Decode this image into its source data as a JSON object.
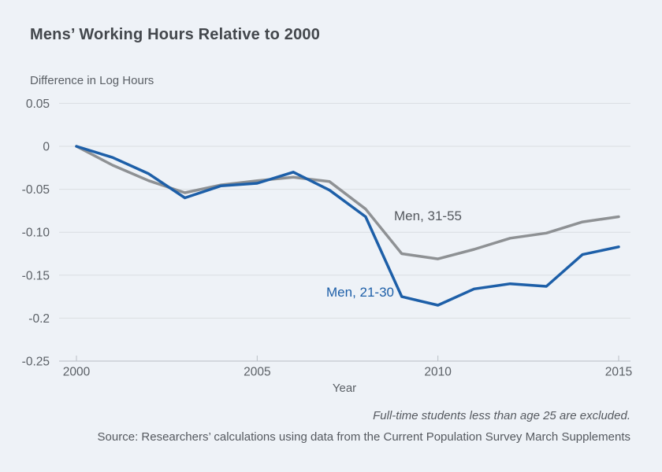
{
  "page": {
    "background_color": "#eef2f7"
  },
  "chart_data": {
    "type": "line",
    "title": "Mens’ Working Hours Relative to 2000",
    "ylabel": "Difference in Log Hours",
    "xlabel": "Year",
    "x": [
      2000,
      2001,
      2002,
      2003,
      2004,
      2005,
      2006,
      2007,
      2008,
      2009,
      2010,
      2011,
      2012,
      2013,
      2014,
      2015
    ],
    "series": [
      {
        "name": "Men, 31-55",
        "color": "#8e9194",
        "values": [
          0,
          -0.022,
          -0.04,
          -0.054,
          -0.045,
          -0.04,
          -0.036,
          -0.041,
          -0.073,
          -0.125,
          -0.131,
          -0.12,
          -0.107,
          -0.101,
          -0.088,
          -0.082
        ]
      },
      {
        "name": "Men, 21-30",
        "color": "#1d5fa8",
        "values": [
          0,
          -0.013,
          -0.032,
          -0.06,
          -0.046,
          -0.043,
          -0.03,
          -0.051,
          -0.082,
          -0.175,
          -0.185,
          -0.166,
          -0.16,
          -0.163,
          -0.126,
          -0.117
        ]
      }
    ],
    "y_ticks": [
      {
        "value": 0.05,
        "label": "0.05"
      },
      {
        "value": 0,
        "label": "0"
      },
      {
        "value": -0.05,
        "label": "-0.05"
      },
      {
        "value": -0.1,
        "label": "-0.10"
      },
      {
        "value": -0.15,
        "label": "-0.15"
      },
      {
        "value": -0.2,
        "label": "-0.2"
      },
      {
        "value": -0.25,
        "label": "-0.25"
      }
    ],
    "x_ticks": [
      {
        "value": 2000,
        "label": "2000"
      },
      {
        "value": 2005,
        "label": "2005"
      },
      {
        "value": 2010,
        "label": "2010"
      },
      {
        "value": 2015,
        "label": "2015"
      }
    ],
    "xlim": [
      2000,
      2015
    ],
    "ylim": [
      -0.25,
      0.05
    ],
    "grid": "horizontal",
    "legend_position": "inline-labels",
    "grid_color": "#d9dde2",
    "axis_color": "#b9bfc6"
  },
  "footer": {
    "note": "Full-time students less than age 25 are excluded.",
    "source": "Source: Researchers’ calculations using data from the Current Population Survey March Supplements"
  }
}
